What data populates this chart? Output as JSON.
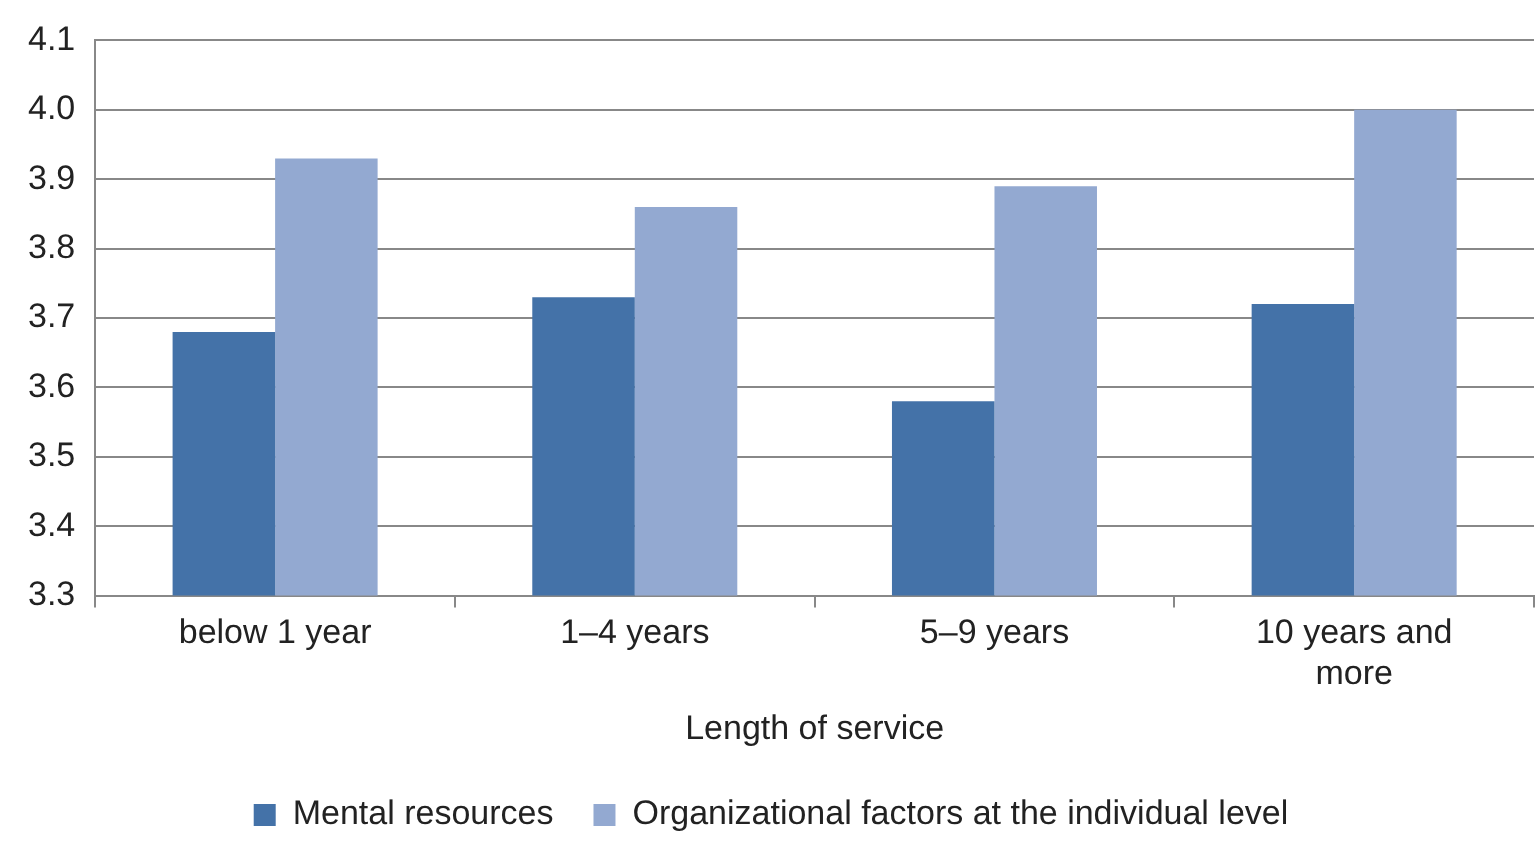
{
  "chart_data": {
    "type": "bar",
    "xlabel": "Length of service",
    "categories": [
      "below 1 year",
      "1–4 years",
      "5–9 years",
      "10 years and more"
    ],
    "series": [
      {
        "name": "Mental resources",
        "color": "#4472a8",
        "values": [
          3.68,
          3.73,
          3.58,
          3.72
        ]
      },
      {
        "name": "Organizational factors at the individual level",
        "color": "#93a9d1",
        "values": [
          3.93,
          3.86,
          3.89,
          4.0
        ]
      }
    ],
    "ylim": [
      3.3,
      4.1
    ],
    "yticks": [
      {
        "value": 3.3,
        "label": "3.3"
      },
      {
        "value": 3.4,
        "label": "3.4"
      },
      {
        "value": 3.5,
        "label": "3.5"
      },
      {
        "value": 3.6,
        "label": "3.6"
      },
      {
        "value": 3.7,
        "label": "3.7"
      },
      {
        "value": 3.8,
        "label": "3.8"
      },
      {
        "value": 3.9,
        "label": "3.9"
      },
      {
        "value": 4.0,
        "label": "4.0"
      },
      {
        "value": 4.1,
        "label": "4.1"
      }
    ],
    "grid": "y",
    "legend": "bottom"
  }
}
